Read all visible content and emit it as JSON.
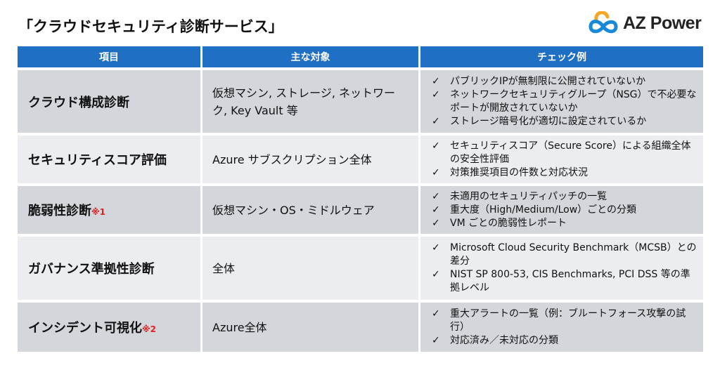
{
  "title": "「クラウドセキュリティ診断サービス」",
  "logo": {
    "text": "AZ Power",
    "colors": {
      "blue": "#1a8ad6",
      "orange": "#f5a623"
    }
  },
  "colors": {
    "header": "#1f6fc4",
    "row_dark": "#d3d6db",
    "row_light": "#ebedf0",
    "note": "#e02020"
  },
  "table": {
    "headers": [
      "項目",
      "主な対象",
      "チェック例"
    ],
    "rows": [
      {
        "item": "クラウド構成診断",
        "note": "",
        "target": "仮想マシン, ストレージ, ネットワーク, Key Vault 等",
        "checks": [
          "パブリックIPが無制限に公開されていないか",
          "ネットワークセキュリティグループ（NSG）で不必要なポートが開放されていないか",
          "ストレージ暗号化が適切に設定されているか"
        ]
      },
      {
        "item": "セキュリティスコア評価",
        "note": "",
        "target": "Azure サブスクリプション全体",
        "checks": [
          "セキュリティスコア（Secure Score）による組織全体の安全性評価",
          "対策推奨項目の件数と対応状況"
        ]
      },
      {
        "item": "脆弱性診断",
        "note": "※1",
        "target": "仮想マシン・OS・ミドルウェア",
        "checks": [
          "未適用のセキュリティパッチの一覧",
          "重大度（High/Medium/Low）ごとの分類",
          "VM ごとの脆弱性レポート"
        ]
      },
      {
        "item": "ガバナンス準拠性診断",
        "note": "",
        "target": "全体",
        "checks": [
          "Microsoft Cloud Security Benchmark（MCSB）との差分",
          "NIST SP 800-53, CIS Benchmarks, PCI DSS 等の準拠レベル"
        ]
      },
      {
        "item": "インシデント可視化",
        "note": "※2",
        "target": "Azure全体",
        "checks": [
          "重大アラートの一覧（例：ブルートフォース攻撃の試行）",
          "対応済み／未対応の分類"
        ]
      }
    ]
  }
}
